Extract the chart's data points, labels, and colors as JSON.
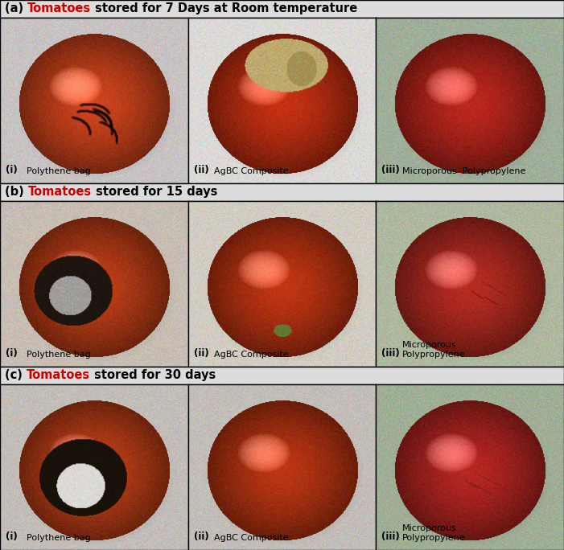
{
  "fig_width": 7.01,
  "fig_height": 6.84,
  "dpi": 100,
  "row_titles": [
    [
      "(a) ",
      "Tomatoes",
      " stored for 7 Days at Room temperature"
    ],
    [
      "(b) ",
      "Tomatoes",
      " stored for 15 days"
    ],
    [
      "(c) ",
      "Tomatoes",
      " stored for 30 days"
    ]
  ],
  "panel_labels": [
    [
      [
        "(i)",
        "Polythene bag"
      ],
      [
        "(ii)",
        "AgBC Composite"
      ],
      [
        "(iii)",
        "Microporous  Polypropylene"
      ]
    ],
    [
      [
        "(i)",
        "Polythene bag"
      ],
      [
        "(ii)",
        "AgBC Composite"
      ],
      [
        "(iii)",
        "Microporous\nPolypropylene"
      ]
    ],
    [
      [
        "(i)",
        "Polythene bag"
      ],
      [
        "(ii)",
        "AgBC Composite"
      ],
      [
        "(iii)",
        "Microporous\nPolypropylene"
      ]
    ]
  ],
  "panel_bg_colors": [
    [
      [
        200,
        195,
        195
      ],
      [
        220,
        218,
        215
      ],
      [
        160,
        175,
        155
      ]
    ],
    [
      [
        200,
        190,
        180
      ],
      [
        210,
        205,
        195
      ],
      [
        175,
        185,
        160
      ]
    ],
    [
      [
        195,
        190,
        185
      ],
      [
        195,
        190,
        185
      ],
      [
        160,
        175,
        150
      ]
    ]
  ],
  "tomato_colors": [
    [
      [
        210,
        70,
        30
      ],
      [
        200,
        50,
        20
      ],
      [
        190,
        40,
        30
      ]
    ],
    [
      [
        195,
        65,
        25
      ],
      [
        195,
        55,
        20
      ],
      [
        185,
        45,
        35
      ]
    ],
    [
      [
        195,
        65,
        25
      ],
      [
        190,
        55,
        20
      ],
      [
        185,
        40,
        35
      ]
    ]
  ],
  "title_bar_color": [
    220,
    220,
    218
  ],
  "border_color": [
    80,
    80,
    80
  ],
  "text_color_black": [
    0,
    0,
    0
  ],
  "text_color_red": [
    200,
    0,
    0
  ]
}
